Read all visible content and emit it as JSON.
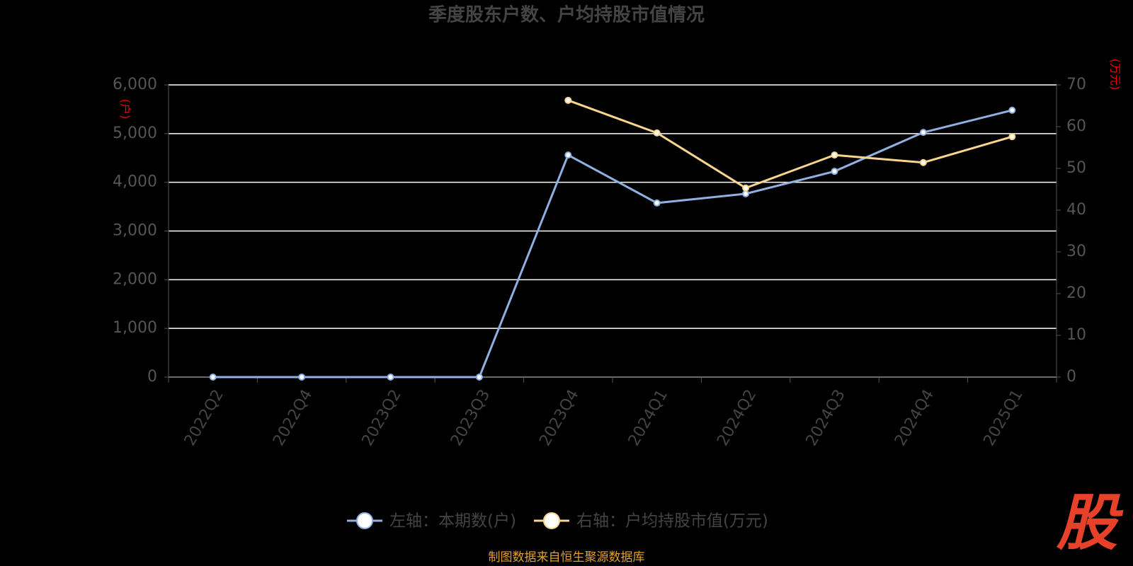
{
  "chart_data": {
    "type": "line",
    "title": "季度股东户数、户均持股市值情况",
    "y_label": "(户)",
    "y2_label": "(万元)",
    "categories": [
      "2022Q2",
      "2022Q4",
      "2023Q2",
      "2023Q3",
      "2023Q4",
      "2024Q1",
      "2024Q2",
      "2024Q3",
      "2024Q4",
      "2025Q1"
    ],
    "series": [
      {
        "name": "左轴：本期数(户)",
        "color": "#8fb0e0",
        "values": [
          0,
          0,
          0,
          0,
          4560,
          3575,
          3765,
          4225,
          5025,
          5480
        ]
      },
      {
        "name": "右轴：户均持股市值(万元)",
        "color": "#f7d58f",
        "axis": "y2",
        "values": [
          null,
          null,
          null,
          null,
          66.3,
          58.5,
          45.3,
          53.2,
          51.4,
          57.6
        ]
      }
    ],
    "ylim": [
      0,
      6000
    ],
    "yticks": [
      0,
      {
        "value": 1000,
        "label": "1,000"
      },
      {
        "value": 2000,
        "label": "2,000"
      },
      {
        "value": 3000,
        "label": "3,000"
      },
      {
        "value": 4000,
        "label": "4,000"
      },
      {
        "value": 5000,
        "label": "5,000"
      },
      {
        "value": 6000,
        "label": "6,000"
      }
    ],
    "y2lim": [
      0,
      70
    ],
    "y2ticks": [
      0,
      10,
      20,
      30,
      40,
      50,
      60,
      70
    ],
    "grid": true,
    "legend": "bottom",
    "source": "制图数据来自恒生聚源数据库",
    "logo": "股"
  }
}
